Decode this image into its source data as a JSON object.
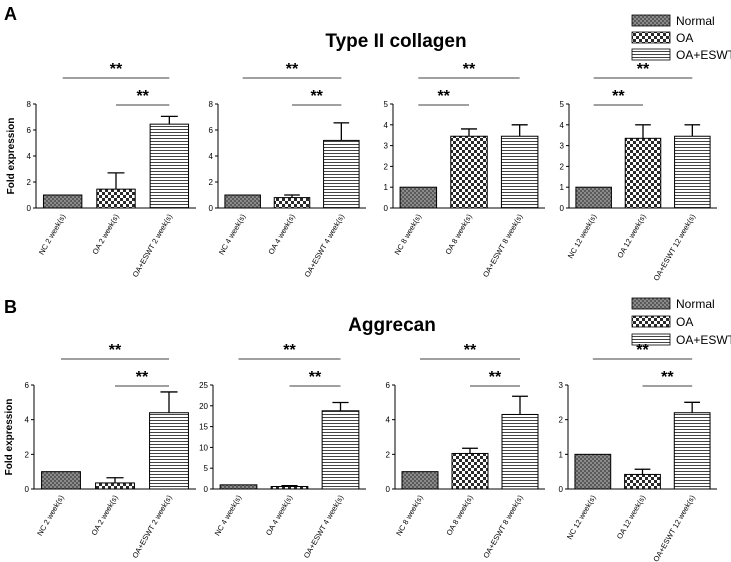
{
  "legend": [
    "Normal",
    "OA",
    "OA+ESWT"
  ],
  "y_label": "Fold expression",
  "panels": [
    {
      "letter": "A",
      "title": "Type II collagen"
    },
    {
      "letter": "B",
      "title": "Aggrecan"
    }
  ],
  "chart_data": [
    {
      "type": "bar",
      "panel": "A",
      "panel_title": "Type II collagen",
      "ylabel": "Fold expression",
      "categories": [
        "NC 2 week(s)",
        "OA 2 week(s)",
        "OA+ESWT 2 week(s)"
      ],
      "series": [
        {
          "name": "mean",
          "values": [
            1.0,
            1.45,
            6.45
          ]
        },
        {
          "name": "error",
          "values": [
            0.0,
            1.25,
            0.6
          ]
        }
      ],
      "ylim": [
        0,
        8
      ],
      "yticks": [
        0,
        2,
        4,
        6,
        8
      ],
      "significance": [
        {
          "from": 0,
          "to": 2,
          "label": "**"
        },
        {
          "from": 1,
          "to": 2,
          "label": "**"
        }
      ]
    },
    {
      "type": "bar",
      "panel": "A",
      "panel_title": "Type II collagen",
      "ylabel": "",
      "categories": [
        "NC 4 week(s)",
        "OA 4 week(s)",
        "OA+ESWT 4 week(s)"
      ],
      "series": [
        {
          "name": "mean",
          "values": [
            1.0,
            0.8,
            5.2
          ]
        },
        {
          "name": "error",
          "values": [
            0.0,
            0.2,
            1.35
          ]
        }
      ],
      "ylim": [
        0,
        8
      ],
      "yticks": [
        0,
        2,
        4,
        6,
        8
      ],
      "significance": [
        {
          "from": 0,
          "to": 2,
          "label": "**"
        },
        {
          "from": 1,
          "to": 2,
          "label": "**"
        }
      ]
    },
    {
      "type": "bar",
      "panel": "A",
      "panel_title": "Type II collagen",
      "ylabel": "",
      "categories": [
        "NC 8 week(s)",
        "OA 8 week(s)",
        "OA+ESWT 8 week(s)"
      ],
      "series": [
        {
          "name": "mean",
          "values": [
            1.0,
            3.45,
            3.45
          ]
        },
        {
          "name": "error",
          "values": [
            0.0,
            0.35,
            0.55
          ]
        }
      ],
      "ylim": [
        0,
        5
      ],
      "yticks": [
        0,
        1,
        2,
        3,
        4,
        5
      ],
      "significance": [
        {
          "from": 0,
          "to": 2,
          "label": "**"
        },
        {
          "from": 0,
          "to": 1,
          "label": "**"
        }
      ]
    },
    {
      "type": "bar",
      "panel": "A",
      "panel_title": "Type II collagen",
      "ylabel": "",
      "categories": [
        "NC 12 week(s)",
        "OA 12 week(s)",
        "OA+ESWT 12 week(s)"
      ],
      "series": [
        {
          "name": "mean",
          "values": [
            1.0,
            3.35,
            3.45
          ]
        },
        {
          "name": "error",
          "values": [
            0.0,
            0.65,
            0.55
          ]
        }
      ],
      "ylim": [
        0,
        5
      ],
      "yticks": [
        0,
        1,
        2,
        3,
        4,
        5
      ],
      "significance": [
        {
          "from": 0,
          "to": 2,
          "label": "**"
        },
        {
          "from": 0,
          "to": 1,
          "label": "**"
        }
      ]
    },
    {
      "type": "bar",
      "panel": "B",
      "panel_title": "Aggrecan",
      "ylabel": "Fold expression",
      "categories": [
        "NC 2 week(s)",
        "OA 2 week(s)",
        "OA+ESWT 2 week(s)"
      ],
      "series": [
        {
          "name": "mean",
          "values": [
            1.0,
            0.35,
            4.4
          ]
        },
        {
          "name": "error",
          "values": [
            0.0,
            0.3,
            1.2
          ]
        }
      ],
      "ylim": [
        0,
        6
      ],
      "yticks": [
        0,
        2,
        4,
        6
      ],
      "significance": [
        {
          "from": 0,
          "to": 2,
          "label": "**"
        },
        {
          "from": 1,
          "to": 2,
          "label": "**"
        }
      ]
    },
    {
      "type": "bar",
      "panel": "B",
      "panel_title": "Aggrecan",
      "ylabel": "",
      "categories": [
        "NC 4 week(s)",
        "OA 4 week(s)",
        "OA+ESWT 4 week(s)"
      ],
      "series": [
        {
          "name": "mean",
          "values": [
            1.0,
            0.6,
            18.8
          ]
        },
        {
          "name": "error",
          "values": [
            0.0,
            0.2,
            2.0
          ]
        }
      ],
      "ylim": [
        0,
        25
      ],
      "yticks": [
        0,
        5,
        10,
        15,
        20,
        25
      ],
      "significance": [
        {
          "from": 0,
          "to": 2,
          "label": "**"
        },
        {
          "from": 1,
          "to": 2,
          "label": "**"
        }
      ]
    },
    {
      "type": "bar",
      "panel": "B",
      "panel_title": "Aggrecan",
      "ylabel": "",
      "categories": [
        "NC 8 week(s)",
        "OA 8 week(s)",
        "OA+ESWT 8 week(s)"
      ],
      "series": [
        {
          "name": "mean",
          "values": [
            1.0,
            2.05,
            4.3
          ]
        },
        {
          "name": "error",
          "values": [
            0.0,
            0.3,
            1.05
          ]
        }
      ],
      "ylim": [
        0,
        6
      ],
      "yticks": [
        0,
        2,
        4,
        6
      ],
      "significance": [
        {
          "from": 0,
          "to": 2,
          "label": "**"
        },
        {
          "from": 1,
          "to": 2,
          "label": "**"
        }
      ]
    },
    {
      "type": "bar",
      "panel": "B",
      "panel_title": "Aggrecan",
      "ylabel": "",
      "categories": [
        "NC 12 week(s)",
        "OA 12 week(s)",
        "OA+ESWT 12 week(s)"
      ],
      "series": [
        {
          "name": "mean",
          "values": [
            1.0,
            0.42,
            2.2
          ]
        },
        {
          "name": "error",
          "values": [
            0.0,
            0.15,
            0.3
          ]
        }
      ],
      "ylim": [
        0,
        3
      ],
      "yticks": [
        0,
        1,
        2,
        3
      ],
      "significance": [
        {
          "from": 0,
          "to": 2,
          "label": "**"
        },
        {
          "from": 1,
          "to": 2,
          "label": "**"
        }
      ]
    }
  ]
}
